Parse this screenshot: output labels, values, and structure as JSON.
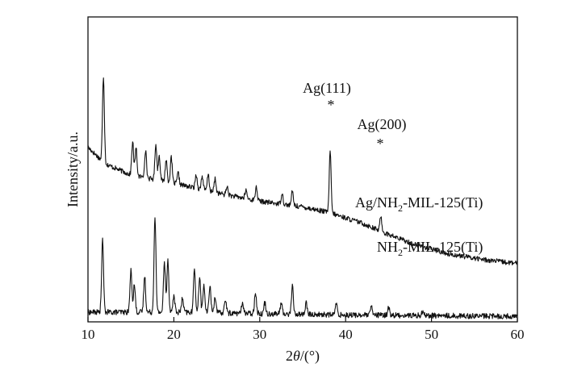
{
  "chart_data": {
    "type": "line",
    "xlabel_prefix": "2",
    "xlabel_symbol": "θ",
    "xlabel_suffix": "/(°)",
    "ylabel": "Intensity/a.u.",
    "xlim": [
      10,
      60
    ],
    "xticks": [
      10,
      20,
      30,
      40,
      50,
      60
    ],
    "y_ticks_labeled": false,
    "grid": false,
    "series": [
      {
        "name_parts": [
          "Ag/NH",
          "2",
          "-MIL-125(Ti)"
        ],
        "color": "#111111",
        "baseline": [
          [
            10,
            6.3
          ],
          [
            12,
            5.7
          ],
          [
            15,
            5.3
          ],
          [
            20,
            5.0
          ],
          [
            25,
            4.65
          ],
          [
            30,
            4.35
          ],
          [
            35,
            4.15
          ],
          [
            38,
            3.95
          ],
          [
            42,
            3.55
          ],
          [
            45,
            3.15
          ],
          [
            48,
            2.8
          ],
          [
            52,
            2.45
          ],
          [
            56,
            2.25
          ],
          [
            60,
            2.1
          ]
        ],
        "noise": 0.09,
        "peaks": [
          [
            11.8,
            3.1
          ],
          [
            15.2,
            1.2
          ],
          [
            15.6,
            1.0
          ],
          [
            16.7,
            1.0
          ],
          [
            17.9,
            1.3
          ],
          [
            18.3,
            0.9
          ],
          [
            19.1,
            0.8
          ],
          [
            19.7,
            0.9
          ],
          [
            20.5,
            0.4
          ],
          [
            22.6,
            0.5
          ],
          [
            23.3,
            0.5
          ],
          [
            24.0,
            0.6
          ],
          [
            24.8,
            0.5
          ],
          [
            26.2,
            0.3
          ],
          [
            28.4,
            0.3
          ],
          [
            29.6,
            0.5
          ],
          [
            32.6,
            0.4
          ],
          [
            33.8,
            0.5
          ],
          [
            38.2,
            2.2
          ],
          [
            44.1,
            0.55
          ]
        ]
      },
      {
        "name_parts": [
          "NH",
          "2",
          "-MIL-125(Ti)"
        ],
        "color": "#111111",
        "baseline": [
          [
            10,
            0.35
          ],
          [
            20,
            0.35
          ],
          [
            40,
            0.25
          ],
          [
            60,
            0.2
          ]
        ],
        "noise": 0.1,
        "peaks": [
          [
            11.7,
            2.6
          ],
          [
            15.0,
            1.5
          ],
          [
            15.4,
            1.0
          ],
          [
            16.6,
            1.3
          ],
          [
            17.8,
            3.5
          ],
          [
            18.9,
            1.8
          ],
          [
            19.3,
            1.9
          ],
          [
            20.0,
            0.6
          ],
          [
            21.0,
            0.5
          ],
          [
            22.4,
            1.6
          ],
          [
            23.0,
            1.3
          ],
          [
            23.5,
            1.0
          ],
          [
            24.2,
            1.0
          ],
          [
            24.8,
            0.6
          ],
          [
            26.0,
            0.5
          ],
          [
            28.0,
            0.4
          ],
          [
            29.5,
            0.8
          ],
          [
            30.6,
            0.4
          ],
          [
            32.5,
            0.4
          ],
          [
            33.8,
            1.0
          ],
          [
            35.4,
            0.4
          ],
          [
            38.9,
            0.4
          ],
          [
            43.0,
            0.3
          ],
          [
            45.0,
            0.3
          ],
          [
            49.0,
            0.2
          ]
        ]
      }
    ],
    "annotations": [
      {
        "label": "Ag(111)",
        "marker": "*",
        "x": 38.2
      },
      {
        "label": "Ag(200)",
        "marker": "*",
        "x": 44.1
      }
    ]
  }
}
